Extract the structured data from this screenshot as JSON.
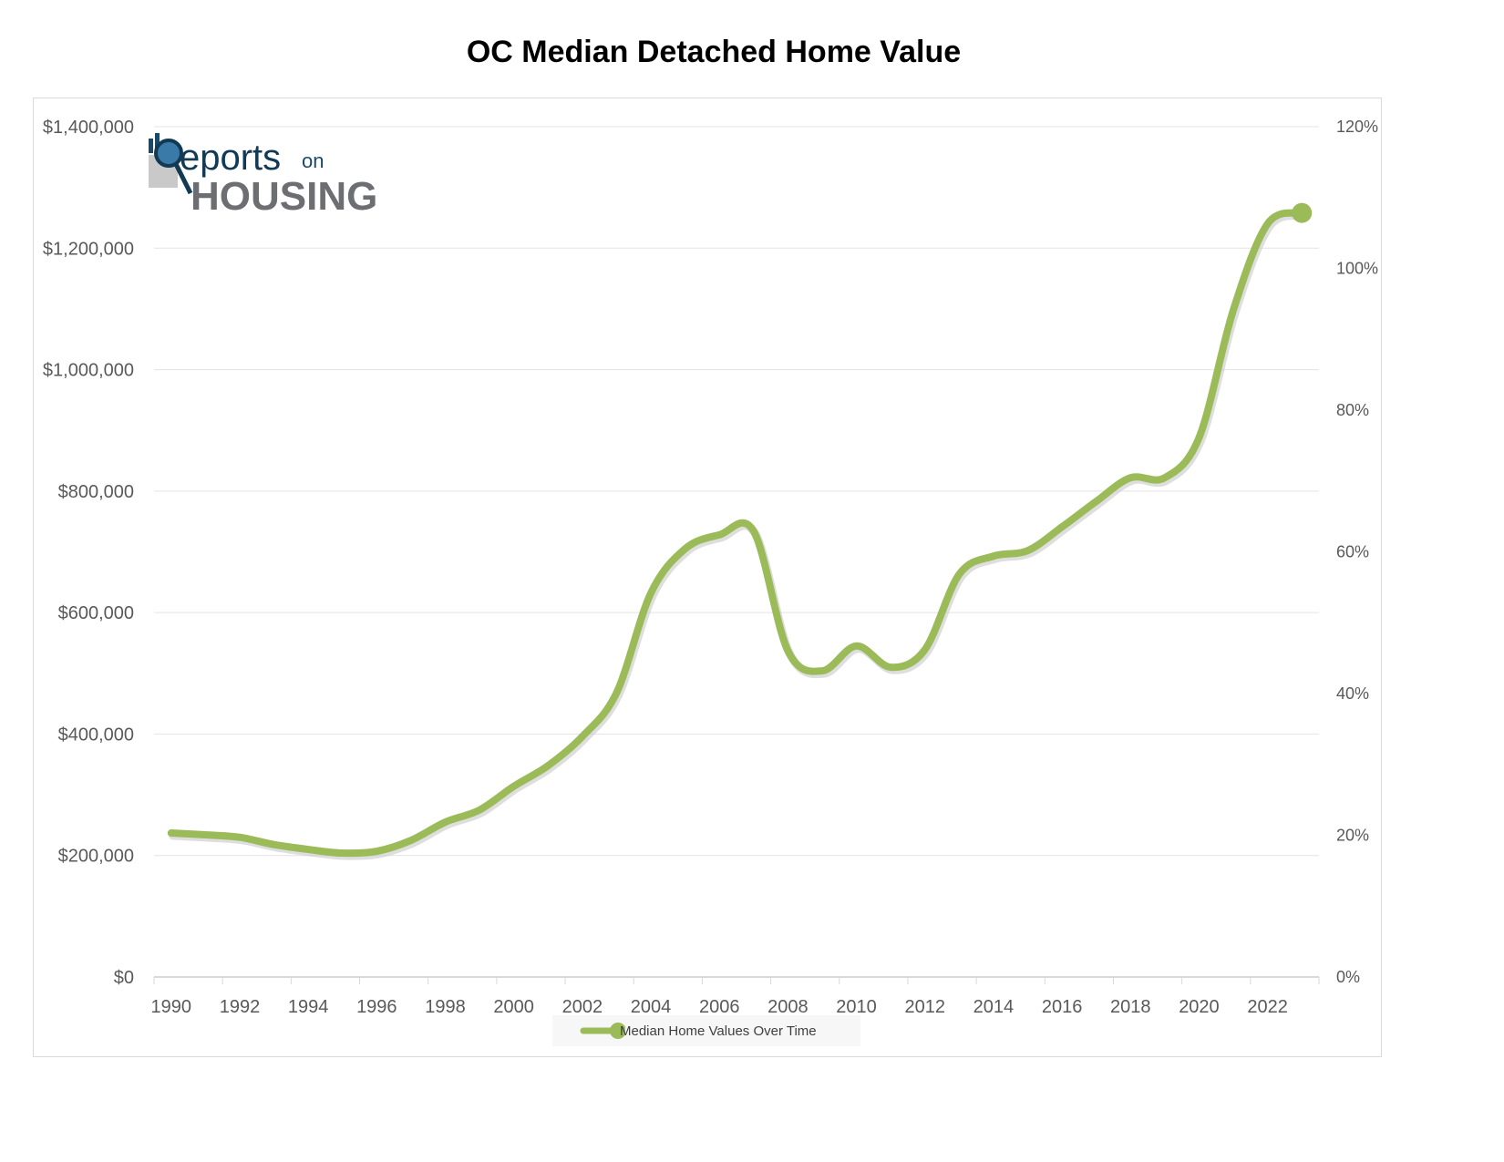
{
  "chart_data": {
    "type": "line",
    "title": "OC Median Detached Home Value",
    "xlabel": "",
    "ylabel": "",
    "x": [
      1990,
      1991,
      1992,
      1993,
      1994,
      1995,
      1996,
      1997,
      1998,
      1999,
      2000,
      2001,
      2002,
      2003,
      2004,
      2005,
      2006,
      2007,
      2008,
      2009,
      2010,
      2011,
      2012,
      2013,
      2014,
      2015,
      2016,
      2017,
      2018,
      2019,
      2020,
      2021,
      2022,
      2023
    ],
    "x_tick_labels": [
      "1990",
      "1992",
      "1994",
      "1996",
      "1998",
      "2000",
      "2002",
      "2004",
      "2006",
      "2008",
      "2010",
      "2012",
      "2014",
      "2016",
      "2018",
      "2020",
      "2022"
    ],
    "series": [
      {
        "name": "Median Home Values Over Time",
        "color": "#9bbb59",
        "values": [
          237000,
          234000,
          230000,
          218000,
          210000,
          204000,
          207000,
          225000,
          255000,
          275000,
          314000,
          348000,
          396000,
          468000,
          632000,
          705000,
          728000,
          734000,
          537000,
          504000,
          545000,
          510000,
          539000,
          663000,
          693000,
          702000,
          741000,
          783000,
          822000,
          822000,
          888000,
          1098000,
          1240000,
          1258000
        ]
      }
    ],
    "ylim": [
      0,
      1400000
    ],
    "y_tick_labels": [
      "$0",
      "$200,000",
      "$400,000",
      "$600,000",
      "$800,000",
      "$1,000,000",
      "$1,200,000",
      "$1,400,000"
    ],
    "y2lim": [
      0,
      120
    ],
    "y2_tick_labels": [
      "0%",
      "20%",
      "40%",
      "60%",
      "80%",
      "100%",
      "120%"
    ],
    "grid": true,
    "legend_position": "bottom"
  },
  "logo": {
    "text_reports": "Reports",
    "text_on": "on",
    "text_housing": "HOUSING"
  }
}
